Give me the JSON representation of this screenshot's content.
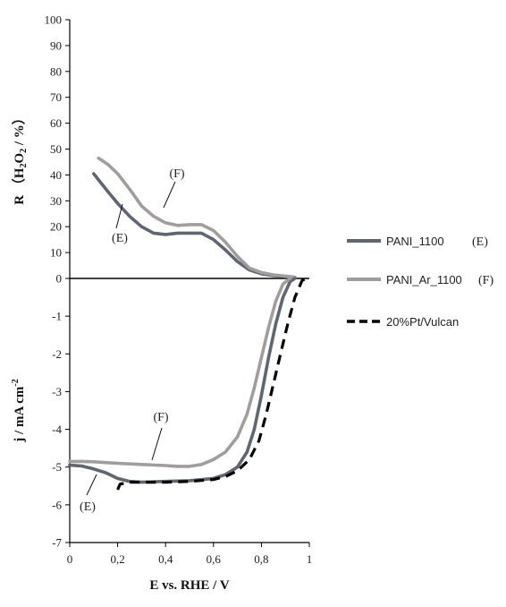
{
  "chart_data": {
    "type": "line",
    "x_axis": {
      "label": "E vs. RHE / V",
      "range": [
        0,
        1
      ],
      "ticks": [
        "0",
        "0,2",
        "0,4",
        "0,6",
        "0,8",
        "1"
      ]
    },
    "top_panel": {
      "ylabel": "R  （H2O2 / %）",
      "ylabel_parts": {
        "prefix": "R  （H",
        "sub1": "2",
        "mid": "O",
        "sub2": "2",
        "suffix": " / %）"
      },
      "ylim": [
        0,
        100
      ],
      "yticks": [
        "0",
        "10",
        "20",
        "30",
        "40",
        "50",
        "60",
        "70",
        "80",
        "90",
        "100"
      ],
      "series": [
        {
          "name": "PANI_1100",
          "tag": "(E)",
          "color": "#5f6673",
          "points": [
            [
              0.1,
              40.5
            ],
            [
              0.13,
              37
            ],
            [
              0.16,
              33.5
            ],
            [
              0.2,
              29
            ],
            [
              0.25,
              24
            ],
            [
              0.3,
              20
            ],
            [
              0.35,
              17.5
            ],
            [
              0.4,
              17
            ],
            [
              0.45,
              17.5
            ],
            [
              0.5,
              17.5
            ],
            [
              0.55,
              17.5
            ],
            [
              0.6,
              15
            ],
            [
              0.65,
              11
            ],
            [
              0.7,
              6.5
            ],
            [
              0.75,
              3.3
            ],
            [
              0.8,
              1.8
            ],
            [
              0.85,
              1.1
            ],
            [
              0.9,
              0.7
            ],
            [
              0.93,
              0.4
            ]
          ]
        },
        {
          "name": "PANI_Ar_1100",
          "tag": "(F)",
          "color": "#a39c9c",
          "points": [
            [
              0.12,
              46.5
            ],
            [
              0.16,
              44
            ],
            [
              0.2,
              40.5
            ],
            [
              0.25,
              34.5
            ],
            [
              0.3,
              28
            ],
            [
              0.35,
              24
            ],
            [
              0.4,
              21.5
            ],
            [
              0.45,
              20.5
            ],
            [
              0.5,
              20.8
            ],
            [
              0.55,
              20.8
            ],
            [
              0.6,
              18.5
            ],
            [
              0.65,
              14
            ],
            [
              0.7,
              8.5
            ],
            [
              0.75,
              4
            ],
            [
              0.8,
              2.3
            ],
            [
              0.85,
              1.4
            ],
            [
              0.9,
              0.9
            ],
            [
              0.94,
              0.5
            ]
          ]
        }
      ],
      "annotations": [
        {
          "text": "(F)",
          "series": "PANI_Ar_1100"
        },
        {
          "text": "(E)",
          "series": "PANI_1100"
        }
      ]
    },
    "bottom_panel": {
      "ylabel": "j / mA cm-2",
      "ylabel_parts": {
        "prefix": "j / mA cm",
        "sup": "-2"
      },
      "ylim": [
        -7,
        0
      ],
      "yticks": [
        "-7",
        "-6",
        "-5",
        "-4",
        "-3",
        "-2",
        "-1",
        "0"
      ],
      "series": [
        {
          "name": "PANI_1100",
          "tag": "(E)",
          "color": "#5f6673",
          "dashed": false,
          "points": [
            [
              0.0,
              -4.95
            ],
            [
              0.05,
              -4.97
            ],
            [
              0.1,
              -5.05
            ],
            [
              0.15,
              -5.15
            ],
            [
              0.2,
              -5.3
            ],
            [
              0.25,
              -5.38
            ],
            [
              0.3,
              -5.4
            ],
            [
              0.4,
              -5.38
            ],
            [
              0.5,
              -5.36
            ],
            [
              0.6,
              -5.3
            ],
            [
              0.65,
              -5.2
            ],
            [
              0.7,
              -5.0
            ],
            [
              0.74,
              -4.6
            ],
            [
              0.77,
              -4.0
            ],
            [
              0.8,
              -3.1
            ],
            [
              0.83,
              -2.1
            ],
            [
              0.86,
              -1.2
            ],
            [
              0.89,
              -0.5
            ],
            [
              0.92,
              -0.08
            ],
            [
              0.94,
              0.0
            ]
          ]
        },
        {
          "name": "PANI_Ar_1100",
          "tag": "(F)",
          "color": "#a39c9c",
          "dashed": false,
          "points": [
            [
              0.0,
              -4.85
            ],
            [
              0.05,
              -4.85
            ],
            [
              0.1,
              -4.86
            ],
            [
              0.2,
              -4.9
            ],
            [
              0.3,
              -4.93
            ],
            [
              0.4,
              -4.96
            ],
            [
              0.45,
              -4.98
            ],
            [
              0.5,
              -4.98
            ],
            [
              0.55,
              -4.93
            ],
            [
              0.6,
              -4.8
            ],
            [
              0.65,
              -4.6
            ],
            [
              0.7,
              -4.2
            ],
            [
              0.74,
              -3.6
            ],
            [
              0.77,
              -2.9
            ],
            [
              0.8,
              -2.1
            ],
            [
              0.83,
              -1.3
            ],
            [
              0.86,
              -0.6
            ],
            [
              0.89,
              -0.15
            ],
            [
              0.92,
              0.0
            ]
          ]
        },
        {
          "name": "20%Pt/Vulcan",
          "tag": "",
          "color": "#000000",
          "dashed": true,
          "points": [
            [
              0.2,
              -5.6
            ],
            [
              0.21,
              -5.45
            ],
            [
              0.25,
              -5.4
            ],
            [
              0.3,
              -5.4
            ],
            [
              0.4,
              -5.4
            ],
            [
              0.5,
              -5.38
            ],
            [
              0.6,
              -5.33
            ],
            [
              0.65,
              -5.25
            ],
            [
              0.7,
              -5.1
            ],
            [
              0.75,
              -4.8
            ],
            [
              0.79,
              -4.3
            ],
            [
              0.82,
              -3.6
            ],
            [
              0.85,
              -2.8
            ],
            [
              0.88,
              -2.0
            ],
            [
              0.91,
              -1.2
            ],
            [
              0.94,
              -0.5
            ],
            [
              0.97,
              -0.05
            ],
            [
              0.99,
              0.0
            ]
          ]
        }
      ],
      "annotations": [
        {
          "text": "(F)",
          "series": "PANI_Ar_1100"
        },
        {
          "text": "(E)",
          "series": "PANI_1100"
        }
      ]
    },
    "legend": {
      "placement": "right",
      "items": [
        {
          "label": "PANI_1100",
          "tag": "(E)",
          "color": "#5f6673",
          "dashed": false
        },
        {
          "label": "PANI_Ar_1100",
          "tag": "(F)",
          "color": "#a39c9c",
          "dashed": false
        },
        {
          "label": "20%Pt/Vulcan",
          "tag": "",
          "color": "#000000",
          "dashed": true
        }
      ]
    },
    "grid": false
  }
}
